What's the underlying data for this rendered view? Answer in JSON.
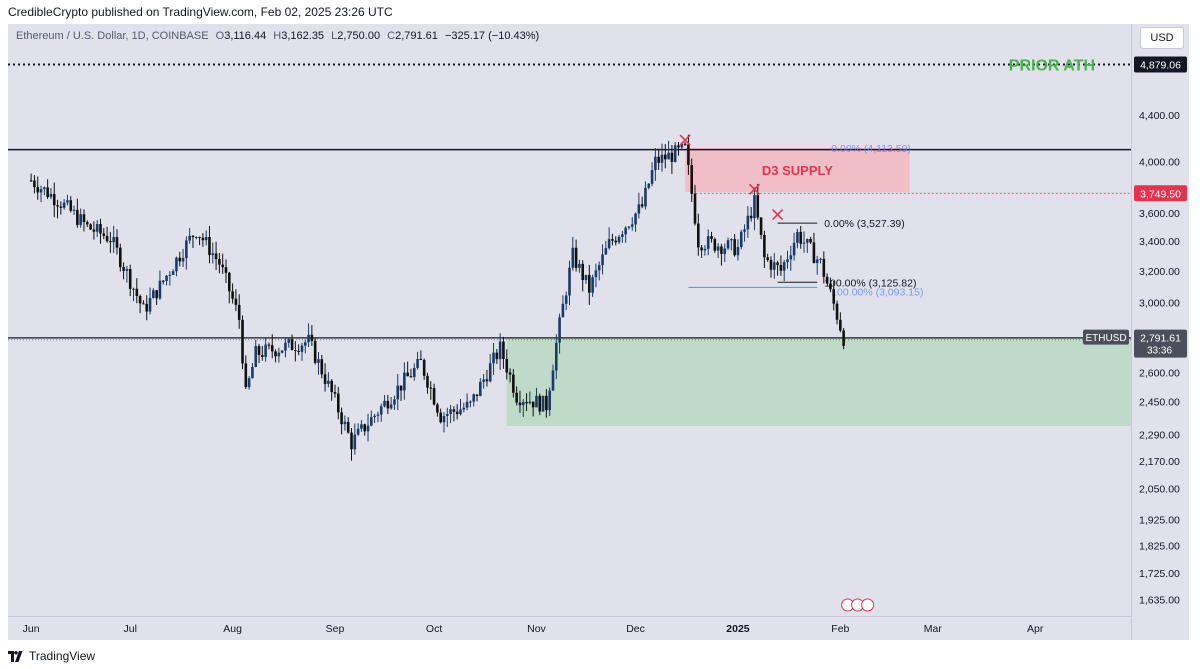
{
  "header": {
    "published": "CredibleCrypto published on TradingView.com, Feb 02, 2025 23:26 UTC"
  },
  "legend": {
    "symbol": "Ethereum / U.S. Dollar, 1D, COINBASE",
    "open_k": "O",
    "open": "3,116.44",
    "high_k": "H",
    "high": "3,162.35",
    "low_k": "L",
    "low": "2,750.00",
    "close_k": "C",
    "close": "2,791.61",
    "change": "−325.17 (−10.43%)"
  },
  "currency": "USD",
  "footer": {
    "brand": "TradingView"
  },
  "colors": {
    "up": "#1a3a6b",
    "down": "#111111",
    "supply": "#f3b7c1",
    "demand": "#b8d8c0",
    "ath_text": "#4caf50",
    "supply_text": "#e0354f",
    "fib_blue": "#5b8def"
  },
  "chart_data": {
    "type": "candlestick",
    "title": "Ethereum / U.S. Dollar, 1D, COINBASE",
    "x_ticks": [
      "Jun",
      "Jul",
      "Aug",
      "Sep",
      "Oct",
      "Nov",
      "Dec",
      "2025",
      "Feb",
      "Mar",
      "Apr"
    ],
    "y_ticks": [
      "4,400.00",
      "4,000.00",
      "3,600.00",
      "3,400.00",
      "3,200.00",
      "3,000.00",
      "2,600.00",
      "2,450.00",
      "2,290.00",
      "2,170.00",
      "2,050.00",
      "1,925.00",
      "1,825.00",
      "1,725.00",
      "1,635.00"
    ],
    "y_scale": "log",
    "ylim": [
      1580,
      5300
    ],
    "ohlc_waypoints": [
      [
        "2024-06-01",
        3850
      ],
      [
        "2024-06-10",
        3680
      ],
      [
        "2024-06-18",
        3500
      ],
      [
        "2024-06-25",
        3420
      ],
      [
        "2024-07-05",
        2950
      ],
      [
        "2024-07-10",
        3100
      ],
      [
        "2024-07-21",
        3480
      ],
      [
        "2024-07-28",
        3250
      ],
      [
        "2024-08-03",
        2900
      ],
      [
        "2024-08-05",
        2480
      ],
      [
        "2024-08-08",
        2700
      ],
      [
        "2024-08-24",
        2770
      ],
      [
        "2024-09-06",
        2250
      ],
      [
        "2024-09-15",
        2420
      ],
      [
        "2024-09-27",
        2650
      ],
      [
        "2024-10-03",
        2380
      ],
      [
        "2024-10-12",
        2430
      ],
      [
        "2024-10-21",
        2730
      ],
      [
        "2024-10-26",
        2480
      ],
      [
        "2024-11-04",
        2430
      ],
      [
        "2024-11-12",
        3300
      ],
      [
        "2024-11-17",
        3080
      ],
      [
        "2024-11-23",
        3380
      ],
      [
        "2024-12-03",
        3650
      ],
      [
        "2024-12-07",
        4000
      ],
      [
        "2024-12-16",
        4100
      ],
      [
        "2024-12-20",
        3400
      ],
      [
        "2025-01-01",
        3350
      ],
      [
        "2025-01-06",
        3680
      ],
      [
        "2025-01-09",
        3280
      ],
      [
        "2025-01-14",
        3200
      ],
      [
        "2025-01-19",
        3450
      ],
      [
        "2025-01-26",
        3250
      ],
      [
        "2025-02-02",
        2791
      ]
    ],
    "levels": {
      "prior_ath": {
        "label": "4,879.06",
        "text": "PRIOR ATH",
        "value": 4879.06
      },
      "resistance": 4100,
      "support": 2790,
      "d3_supply": {
        "text": "D3 SUPPLY",
        "from": "2024-12-16",
        "to": "2025-02-22",
        "low": 3760,
        "high": 4113
      },
      "demand_zone": {
        "from": "2024-10-23",
        "to": "2025-04-30",
        "low": 2330,
        "high": 2790
      },
      "dashed_red": {
        "value": 3749.5,
        "label": "3,749.50"
      },
      "fib_top_black": {
        "text": "0.00% (3,527.39)",
        "value": 3527.39
      },
      "fib_bottom_black": {
        "text": "100.00% (3,125.82)",
        "value": 3125.82
      },
      "fib_top_blue": {
        "text": "0.00% (4,113.59)",
        "value": 4113.59
      },
      "fib_bottom_blue": {
        "text": "100.00% (3,093.15)",
        "value": 3093.15
      },
      "last_price": {
        "symbol": "ETHUSD",
        "value": "2,791.61",
        "countdown": "33:36"
      }
    },
    "x_marks": [
      {
        "date": "2024-12-16",
        "price": 4180
      },
      {
        "date": "2025-01-06",
        "price": 3780
      },
      {
        "date": "2025-01-13",
        "price": 3590
      }
    ]
  }
}
